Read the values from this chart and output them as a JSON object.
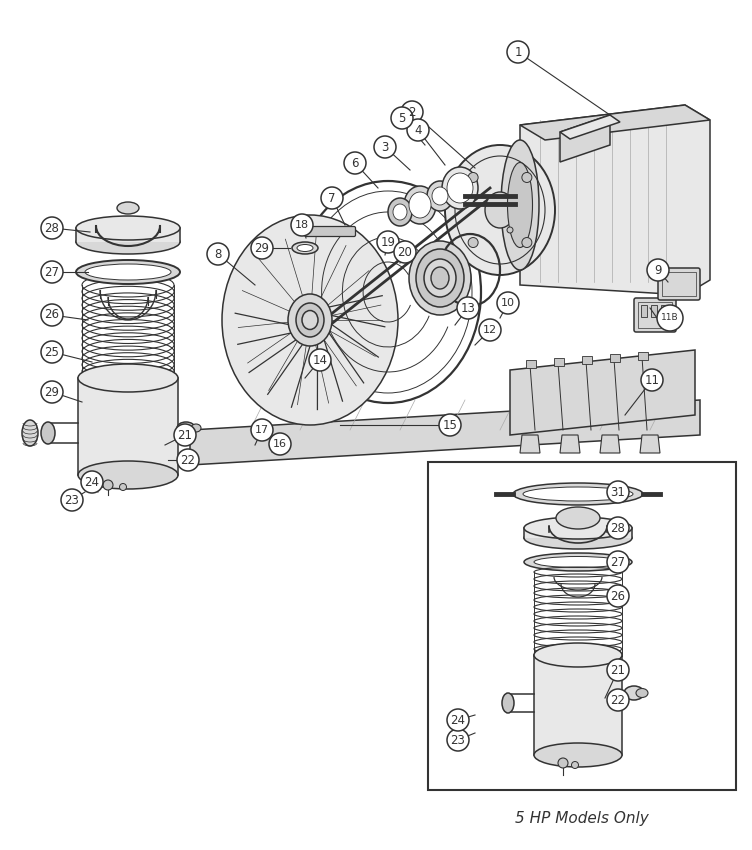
{
  "title": "5 HP Models Only",
  "background_color": "#ffffff",
  "line_color": "#333333",
  "fig_width": 7.52,
  "fig_height": 8.5,
  "dpi": 100
}
